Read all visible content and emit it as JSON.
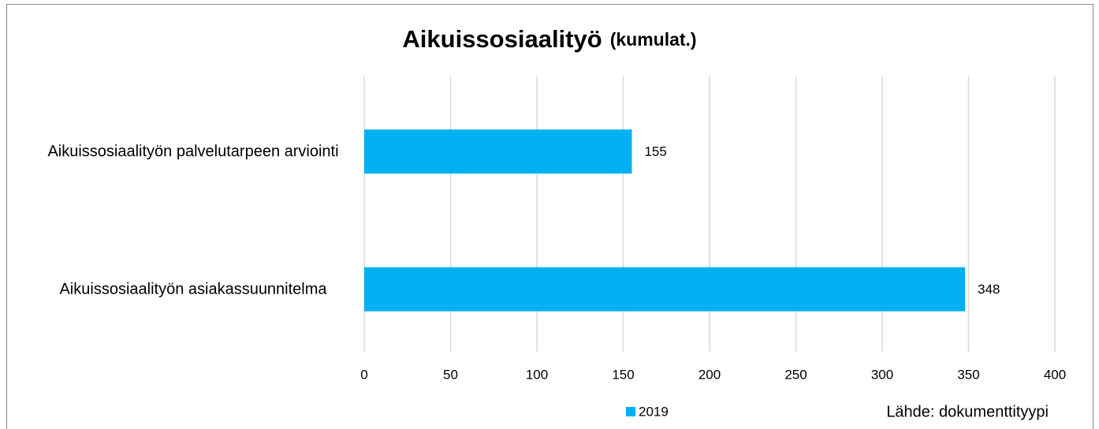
{
  "chart_data": {
    "type": "bar",
    "orientation": "horizontal",
    "title": "Aikuissosiaalityö",
    "title_suffix": "(kumulat.)",
    "categories": [
      "Aikuissosiaalityön palvelutarpeen arviointi",
      "Aikuissosiaalityön asiakassuunnitelma"
    ],
    "series": [
      {
        "name": "2019",
        "color": "#00b0f0",
        "values": [
          155,
          348
        ]
      }
    ],
    "xlim": [
      0,
      400
    ],
    "xticks": [
      0,
      50,
      100,
      150,
      200,
      250,
      300,
      350,
      400
    ],
    "grid": true,
    "legend": "bottom",
    "source": "Lähde: dokumenttityypi"
  }
}
